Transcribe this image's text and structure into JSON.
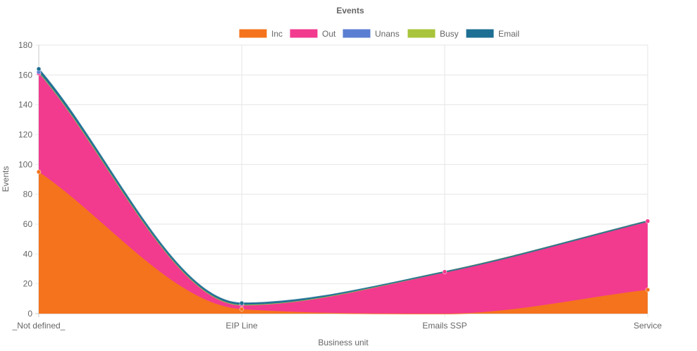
{
  "chart_data": {
    "type": "area",
    "stacked": true,
    "title": "Events",
    "xlabel": "Business unit",
    "ylabel": "Events",
    "ylim": [
      0,
      180
    ],
    "yticks": [
      0,
      20,
      40,
      60,
      80,
      100,
      120,
      140,
      160,
      180
    ],
    "categories": [
      "_Not defined_",
      "EIP Line",
      "Emails SSP",
      "Service"
    ],
    "grid": true,
    "legend_position": "top",
    "series": [
      {
        "name": "Inc",
        "color": "#f4731c",
        "values": [
          95,
          3,
          0,
          16
        ]
      },
      {
        "name": "Out",
        "color": "#f23a8f",
        "values": [
          66,
          3,
          28,
          46
        ]
      },
      {
        "name": "Unans",
        "color": "#5a7ed1",
        "values": [
          1,
          0,
          0,
          0
        ]
      },
      {
        "name": "Busy",
        "color": "#a8c43a",
        "values": [
          0,
          0,
          0,
          0
        ]
      },
      {
        "name": "Email",
        "color": "#1d6f93",
        "values": [
          2,
          1,
          0,
          0
        ]
      }
    ]
  }
}
